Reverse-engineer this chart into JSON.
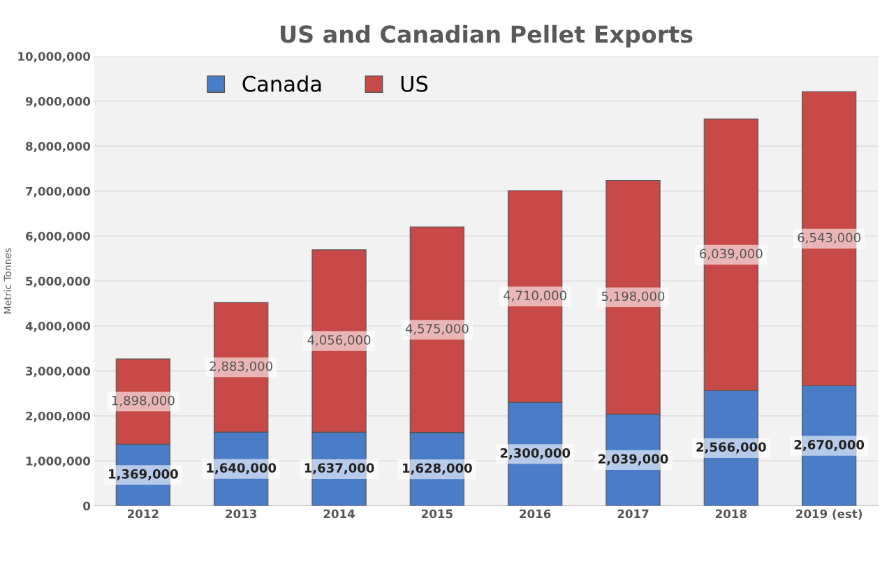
{
  "chart_data": {
    "type": "bar",
    "title": "US and Canadian Pellet Exports",
    "ylabel": "Metric Tonnes",
    "categories": [
      "2012",
      "2013",
      "2014",
      "2015",
      "2016",
      "2017",
      "2018",
      "2019 (est)"
    ],
    "stacked": true,
    "series": [
      {
        "name": "Canada",
        "color": "#4a7cc8",
        "values": [
          1369000,
          1640000,
          1637000,
          1628000,
          2300000,
          2039000,
          2566000,
          2670000
        ],
        "value_labels": [
          "1,369,000",
          "1,640,000",
          "1,637,000",
          "1,628,000",
          "2,300,000",
          "2,039,000",
          "2,566,000",
          "2,670,000"
        ]
      },
      {
        "name": "US",
        "color": "#c84a48",
        "values": [
          1898000,
          2883000,
          4056000,
          4575000,
          4710000,
          5198000,
          6039000,
          6543000
        ],
        "value_labels": [
          "1,898,000",
          "2,883,000",
          "4,056,000",
          "4,575,000",
          "4,710,000",
          "5,198,000",
          "6,039,000",
          "6,543,000"
        ]
      }
    ],
    "ylim": [
      0,
      10000000
    ],
    "yticks": [
      0,
      {
        "value": 1000000,
        "label": "1,000,000"
      },
      {
        "value": 2000000,
        "label": "2,000,000"
      },
      {
        "value": 3000000,
        "label": "3,000,000"
      },
      {
        "value": 4000000,
        "label": "4,000,000"
      },
      {
        "value": 5000000,
        "label": "5,000,000"
      },
      {
        "value": 6000000,
        "label": "6,000,000"
      },
      {
        "value": 7000000,
        "label": "7,000,000"
      },
      {
        "value": 8000000,
        "label": "8,000,000"
      },
      {
        "value": 9000000,
        "label": "9,000,000"
      },
      {
        "value": 10000000,
        "label": "10,000,000"
      }
    ],
    "grid": "y",
    "legend": "top left"
  }
}
